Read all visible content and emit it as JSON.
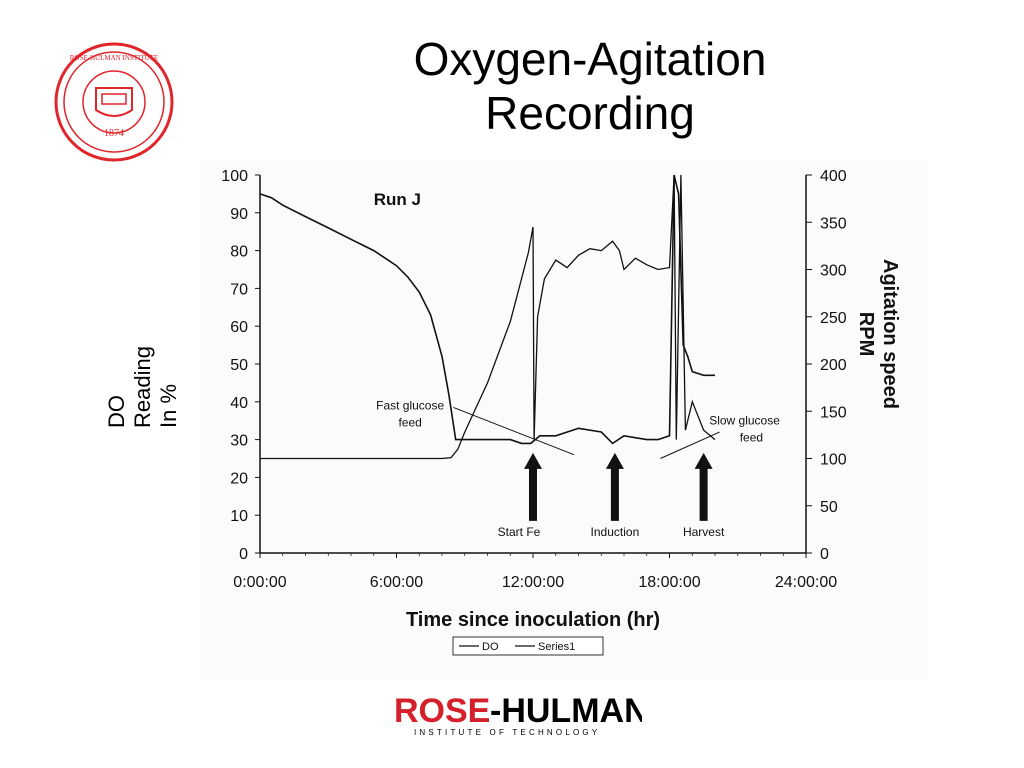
{
  "slide": {
    "title_line1": "Oxygen-Agitation",
    "title_line2": "Recording",
    "do_axis_label": {
      "line1": "DO",
      "line2": "Reading",
      "line3": "In %"
    }
  },
  "seal": {
    "text": "ROSE-HULMAN INSTITUTE OF TECHNOLOGY",
    "year": "1874",
    "color": "#e0252b"
  },
  "footer_logo": {
    "name_red": "ROSE",
    "name_black": "-HULMAN",
    "subtitle": "INSTITUTE OF TECHNOLOGY",
    "color_red": "#d4202a"
  },
  "chart_data": {
    "type": "line",
    "title": "Run J",
    "xlabel": "Time since inoculation (hr)",
    "ylabel_right": "Agitation speed RPM",
    "xlim": [
      0,
      24
    ],
    "ylim": [
      0,
      100
    ],
    "y2lim": [
      0,
      400
    ],
    "x_ticks": [
      "0:00:00",
      "6:00:00",
      "12:00:00",
      "18:00:00",
      "24:00:00"
    ],
    "y_ticks": [
      "0",
      "10",
      "20",
      "30",
      "40",
      "50",
      "60",
      "70",
      "80",
      "90",
      "100"
    ],
    "y2_ticks": [
      "0",
      "50",
      "100",
      "150",
      "200",
      "250",
      "300",
      "350",
      "400"
    ],
    "legend": [
      "DO",
      "Series1"
    ],
    "legend_position": "bottom",
    "series": [
      {
        "name": "DO",
        "x": [
          0,
          0.5,
          1,
          2,
          3,
          4,
          5,
          6,
          6.5,
          7,
          7.5,
          8,
          8.3,
          8.6,
          9,
          10,
          11,
          11.5,
          11.9,
          12.1,
          12.3,
          13,
          14,
          15,
          15.5,
          16,
          17,
          17.5,
          18,
          18.2,
          18.4,
          18.6,
          18.8,
          19,
          19.5,
          20
        ],
        "y": [
          95,
          94,
          92,
          89,
          86,
          83,
          80,
          76,
          73,
          69,
          63,
          52,
          42,
          30,
          30,
          30,
          30,
          29,
          29,
          30,
          31,
          31,
          33,
          32,
          29,
          31,
          30,
          30,
          31,
          100,
          95,
          55,
          52,
          48,
          47,
          47
        ]
      },
      {
        "name": "Series1",
        "x": [
          0,
          2,
          4,
          6,
          8,
          8.4,
          8.7,
          9,
          10,
          11,
          11.8,
          12.0,
          12.05,
          12.2,
          12.5,
          13,
          13.5,
          14,
          14.5,
          15,
          15.5,
          15.8,
          16,
          16.5,
          17,
          17.5,
          18,
          18.2,
          18.3,
          18.5,
          18.7,
          19,
          19.5,
          20
        ],
        "y": [
          100,
          100,
          100,
          100,
          100,
          101,
          110,
          128,
          180,
          245,
          318,
          345,
          120,
          250,
          290,
          310,
          302,
          315,
          322,
          320,
          330,
          320,
          300,
          312,
          305,
          300,
          302,
          400,
          120,
          400,
          130,
          160,
          130,
          120
        ]
      }
    ],
    "annotations": [
      {
        "text": "Fast glucose feed",
        "x": 8.8,
        "y": 30
      },
      {
        "text": "Slow glucose feed",
        "x": 19.3,
        "y": 31
      },
      {
        "text": "Start Fe",
        "x": 12.0,
        "y": 16
      },
      {
        "text": "Induction",
        "x": 15.7,
        "y": 16
      },
      {
        "text": "Harvest",
        "x": 19.6,
        "y": 16
      }
    ]
  }
}
